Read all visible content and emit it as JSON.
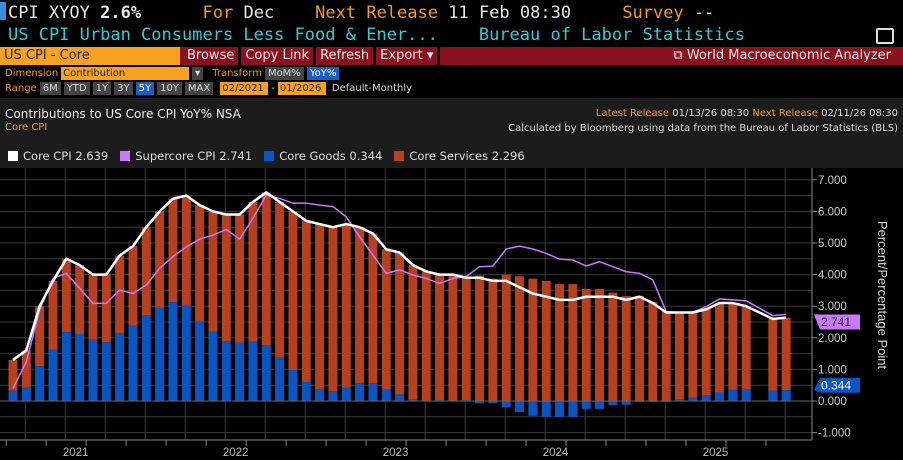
{
  "header": {
    "ticker": "CPI XYOY",
    "value": "2.6%",
    "for_label": "For",
    "for_value": "Dec",
    "next_label": "Next Release",
    "next_value": "11 Feb 08:30",
    "survey_label": "Survey",
    "survey_value": "--",
    "description": "US CPI Urban Consumers Less Food & Ener...",
    "source": "Bureau of Labor Statistics"
  },
  "toolbar": {
    "selector": "US CPI - Core",
    "browse": "Browse",
    "copy_link": "Copy Link",
    "refresh": "Refresh",
    "export": "Export ▾",
    "wma": "World Macroeconomic Analyzer"
  },
  "controls": {
    "dimension_label": "Dimension",
    "dimension_value": "Contribution",
    "transform_label": "Transform",
    "transforms": [
      "MoM%",
      "YoY%"
    ],
    "range_label": "Range",
    "ranges": [
      "6M",
      "YTD",
      "1Y",
      "3Y",
      "5Y",
      "10Y",
      "MAX"
    ],
    "active_range": "5Y",
    "start": "02/2021",
    "end": "01/2026",
    "dash": "-",
    "frequency": "Default-Monthly"
  },
  "chart_info": {
    "latest_label": "Latest Release",
    "latest_value": "01/13/26 08:30",
    "next_label": "Next Release",
    "next_value": "02/11/26 08:30",
    "calc": "Calculated by Bloomberg using data from the Bureau of Labor Statistics (BLS)"
  },
  "chart_data": {
    "type": "bar",
    "title": "Contributions to US Core CPI YoY% NSA",
    "subtitle": "Core CPI",
    "ylabel": "Percent/Percentage Point",
    "ylim": [
      -1.25,
      7.25
    ],
    "yticks": [
      "7.000",
      "6.000",
      "5.000",
      "4.000",
      "3.000",
      "2.000",
      "1.000",
      "0.000",
      "-1.000"
    ],
    "ytick_values": [
      7,
      6,
      5,
      4,
      3,
      2,
      1,
      0,
      -1
    ],
    "xtick_labels": [
      "2021",
      "2022",
      "2023",
      "2024",
      "2025"
    ],
    "start_month": "2021-02",
    "months": 59,
    "legend": [
      {
        "name": "Core CPI",
        "last": "2.639",
        "color": "#ffffff"
      },
      {
        "name": "Supercore CPI",
        "last": "2.741",
        "color": "#cc77ff"
      },
      {
        "name": "Core Goods",
        "last": "0.344",
        "color": "#0a55c4"
      },
      {
        "name": "Core Services",
        "last": "2.296",
        "color": "#b8401e"
      }
    ],
    "markers": {
      "supercore": "2.741",
      "goods": "0.344"
    },
    "series": [
      {
        "name": "Core CPI",
        "type": "line",
        "values": [
          1.3,
          1.6,
          3.0,
          3.8,
          4.5,
          4.3,
          4.0,
          4.0,
          4.6,
          4.9,
          5.5,
          6.0,
          6.4,
          6.5,
          6.2,
          6.0,
          5.9,
          5.9,
          6.3,
          6.6,
          6.3,
          6.0,
          5.7,
          5.6,
          5.5,
          5.6,
          5.5,
          5.3,
          4.8,
          4.7,
          4.3,
          4.1,
          4.0,
          4.0,
          3.9,
          3.9,
          3.8,
          3.8,
          3.6,
          3.4,
          3.3,
          3.2,
          3.2,
          3.3,
          3.3,
          3.3,
          3.2,
          3.3,
          3.1,
          2.8,
          2.8,
          2.8,
          2.9,
          3.1,
          3.1,
          3.0,
          null,
          2.6,
          2.639
        ]
      },
      {
        "name": "Supercore CPI",
        "type": "line",
        "values": [
          0.4,
          1.24,
          2.88,
          3.88,
          4.04,
          3.57,
          3.09,
          3.09,
          3.51,
          3.4,
          3.67,
          4.2,
          4.57,
          4.88,
          5.12,
          5.25,
          5.43,
          5.12,
          5.78,
          6.52,
          6.41,
          6.26,
          6.26,
          6.2,
          6.15,
          5.83,
          5.2,
          4.62,
          4.04,
          4.15,
          3.99,
          3.88,
          3.72,
          3.88,
          3.94,
          4.25,
          4.27,
          4.81,
          4.9,
          4.81,
          4.67,
          4.49,
          4.46,
          4.27,
          4.41,
          4.25,
          4.09,
          4.04,
          3.83,
          2.83,
          2.8,
          2.8,
          2.99,
          3.23,
          3.2,
          3.17,
          null,
          2.7,
          2.741
        ]
      },
      {
        "name": "Core Goods",
        "type": "bar",
        "values": [
          0.33,
          0.42,
          1.1,
          1.63,
          2.18,
          2.12,
          1.94,
          1.86,
          2.14,
          2.38,
          2.72,
          2.96,
          3.13,
          3.02,
          2.51,
          2.2,
          1.9,
          1.85,
          1.88,
          1.76,
          1.37,
          0.98,
          0.6,
          0.38,
          0.31,
          0.42,
          0.56,
          0.56,
          0.36,
          0.21,
          0.05,
          0.0,
          0.03,
          0.0,
          0.03,
          -0.07,
          -0.07,
          -0.2,
          -0.35,
          -0.47,
          -0.5,
          -0.5,
          -0.5,
          -0.25,
          -0.25,
          -0.13,
          -0.12,
          -0.03,
          -0.03,
          -0.03,
          0.05,
          0.1,
          0.18,
          0.27,
          0.35,
          0.36,
          null,
          0.33,
          0.344
        ]
      },
      {
        "name": "Core Services",
        "type": "bar",
        "values": [
          0.97,
          1.18,
          1.9,
          2.17,
          2.32,
          2.18,
          2.06,
          2.14,
          2.46,
          2.52,
          2.78,
          3.04,
          3.27,
          3.48,
          3.69,
          3.8,
          4.0,
          4.05,
          4.42,
          4.84,
          4.93,
          5.02,
          5.1,
          5.22,
          5.19,
          5.18,
          4.94,
          4.74,
          4.44,
          4.49,
          4.25,
          4.1,
          3.97,
          4.0,
          3.87,
          3.97,
          3.87,
          4.0,
          3.95,
          3.87,
          3.8,
          3.7,
          3.7,
          3.55,
          3.55,
          3.43,
          3.32,
          3.33,
          3.13,
          2.83,
          2.75,
          2.7,
          2.72,
          2.83,
          2.75,
          2.64,
          null,
          2.27,
          2.296
        ]
      }
    ]
  }
}
